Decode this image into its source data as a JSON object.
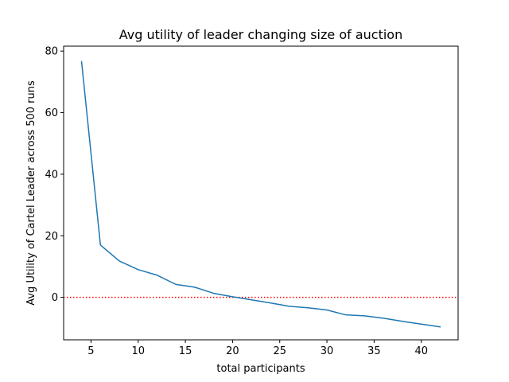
{
  "chart_data": {
    "type": "line",
    "title": "Avg utility of leader changing size of auction",
    "xlabel": "total participants",
    "ylabel": "Avg Utility of Cartel Leader across 500 runs",
    "xlim": [
      2.1,
      43.9
    ],
    "ylim": [
      -13.8,
      81.6
    ],
    "xticks": [
      5,
      10,
      15,
      20,
      25,
      30,
      35,
      40
    ],
    "yticks": [
      0,
      20,
      40,
      60,
      80
    ],
    "grid": false,
    "series": [
      {
        "color": "#1f77b4",
        "x": [
          4,
          6,
          8,
          10,
          12,
          14,
          16,
          18,
          20,
          22,
          24,
          26,
          28,
          30,
          32,
          34,
          36,
          38,
          40,
          42
        ],
        "y": [
          76.6,
          17.0,
          11.8,
          9.0,
          7.2,
          4.2,
          3.3,
          1.3,
          0.2,
          -0.8,
          -1.8,
          -2.9,
          -3.4,
          -4.1,
          -5.7,
          -6.0,
          -6.8,
          -7.8,
          -8.7,
          -9.6
        ]
      }
    ],
    "reference_line": {
      "y": 0,
      "color": "#ff0000",
      "style": "dotted"
    }
  }
}
